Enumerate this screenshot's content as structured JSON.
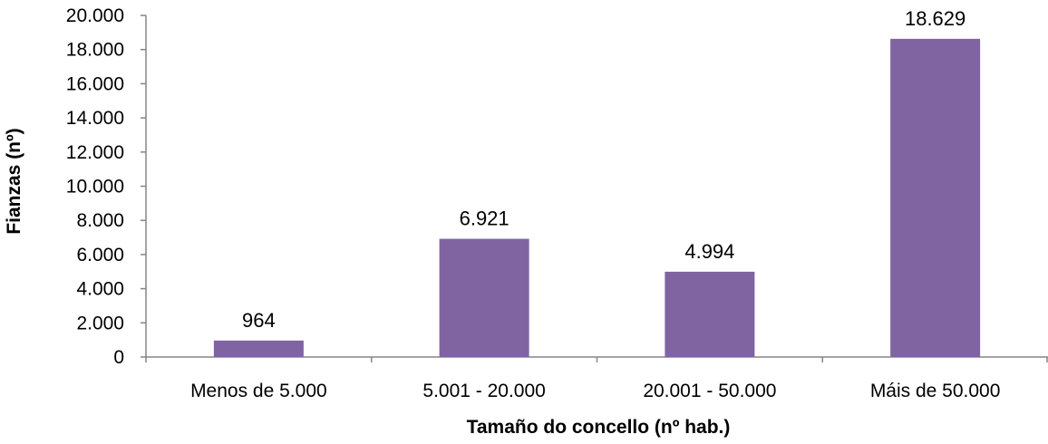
{
  "chart_data": {
    "type": "bar",
    "title": "",
    "xlabel": "Tamaño do concello (nº hab.)",
    "ylabel": "Fianzas (nº)",
    "categories": [
      "Menos de 5.000",
      "5.001 - 20.000",
      "20.001 - 50.000",
      "Máis de 50.000"
    ],
    "values": [
      964,
      6921,
      4994,
      18629
    ],
    "value_labels": [
      "964",
      "6.921",
      "4.994",
      "18.629"
    ],
    "ylim": [
      0,
      20000
    ],
    "yticks": [
      0,
      2000,
      4000,
      6000,
      8000,
      10000,
      12000,
      14000,
      16000,
      18000,
      20000
    ],
    "ytick_labels": [
      "0",
      "2.000",
      "4.000",
      "6.000",
      "8.000",
      "10.000",
      "12.000",
      "14.000",
      "16.000",
      "18.000",
      "20.000"
    ],
    "grid": false,
    "legend": "none",
    "bar_color": "#8064A2",
    "axis_color": "#868686"
  }
}
